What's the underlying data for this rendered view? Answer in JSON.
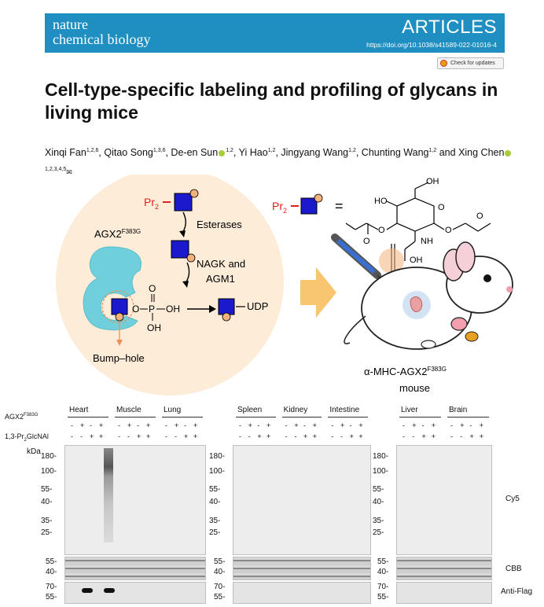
{
  "header": {
    "journal_line1": "nature",
    "journal_line2": "chemical biology",
    "section": "ARTICLES",
    "doi": "https://doi.org/10.1038/s41589-022-01016-4"
  },
  "check_updates": "Check for updates",
  "title": "Cell-type-specific labeling and profiling of glycans in living mice",
  "authors": [
    {
      "name": "Xinqi Fan",
      "aff": "1,2,6"
    },
    {
      "name": "Qitao Song",
      "aff": "1,3,6"
    },
    {
      "name": "De-en Sun",
      "aff": "1,2",
      "orcid": true
    },
    {
      "name": "Yi Hao",
      "aff": "1,2"
    },
    {
      "name": "Jingyang Wang",
      "aff": "1,2"
    },
    {
      "name": "Chunting Wang",
      "aff": "1,2"
    },
    {
      "name": "Xing Chen",
      "aff": "1,2,3,4,5",
      "orcid": true,
      "email": true
    }
  ],
  "authors_and": "and",
  "schematic": {
    "pr2": "Pr",
    "pr2_sub": "2",
    "esterases": "Esterases",
    "nagk_line1": "NAGK and",
    "nagk_line2": "AGM1",
    "agx2": "AGX2",
    "agx2_sup": "F383G",
    "oh": "OH",
    "o": "O",
    "p": "P",
    "udp": "UDP",
    "bump_hole": "Bump–hole",
    "equals": "=",
    "mouse_label": "α-MHC-AGX2",
    "mouse_label_sup": "F383G",
    "mouse": "mouse",
    "structure_labels": [
      "OH",
      "HO",
      "O",
      "O",
      "O",
      "NH",
      "O",
      "O",
      "OH"
    ]
  },
  "blot": {
    "groups": [
      "Heart",
      "Muscle",
      "Lung",
      "Spleen",
      "Kidney",
      "Intestine",
      "Liver",
      "Brain"
    ],
    "row1_label": "AGX2",
    "row1_sup": "F383G",
    "row2_label": "1,3-Pr",
    "row2_sub": "2",
    "row2_rest": "GlcNAl",
    "agx2_signs": [
      "-",
      "+",
      "-",
      "+"
    ],
    "pr_signs": [
      "-",
      "-",
      "+",
      "+"
    ],
    "kda": "kDa",
    "mw_top": [
      "180-",
      "100-",
      "55-",
      "40-",
      "35-",
      "25-"
    ],
    "mw_cbb": [
      "55-",
      "40-"
    ],
    "mw_flag": [
      "70-",
      "55-"
    ],
    "cy5": "Cy5",
    "cbb": "CBB",
    "anti_flag": "Anti-Flag"
  },
  "colors": {
    "header": "#1f8ec0",
    "glycan_square": "#1a1acc",
    "propargyl_circle": "#f2b27a",
    "pr2_red": "#e02020",
    "enzyme_cyan": "#6fd0dc",
    "background_peach": "#fcecd8",
    "arrow_orange": "#f8c670"
  }
}
